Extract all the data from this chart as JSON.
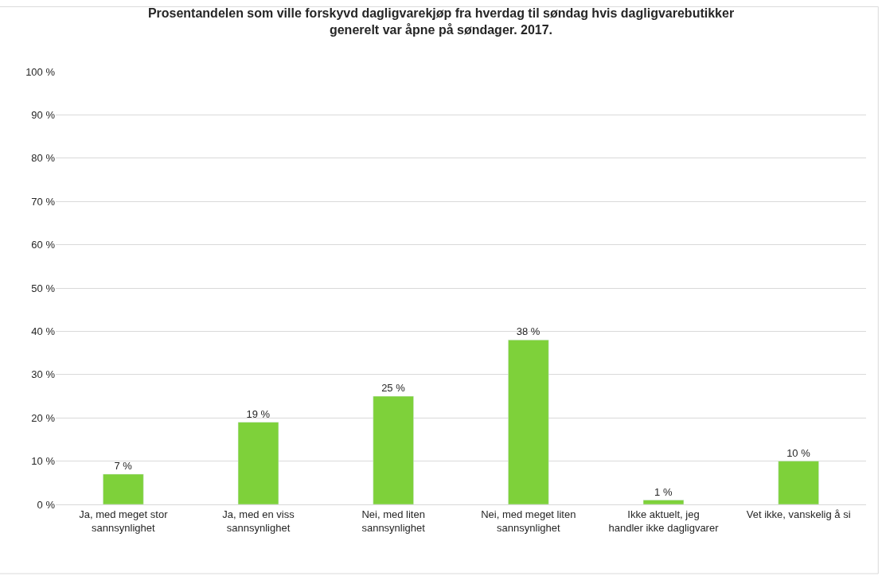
{
  "chart_data": {
    "type": "bar",
    "title": "Prosentandelen som ville forskyvd dagligvarekjøp fra hverdag til søndag hvis dagligvarebutikker generelt var åpne på søndager. 2017.",
    "categories": [
      "Ja, med meget stor sannsynlighet",
      "Ja, med en viss sannsynlighet",
      "Nei, med liten sannsynlighet",
      "Nei, med meget liten sannsynlighet",
      "Ikke aktuelt, jeg handler ikke dagligvarer",
      "Vet ikke, vanskelig å si"
    ],
    "values": [
      7,
      19,
      25,
      38,
      1,
      10
    ],
    "value_labels": [
      "7 %",
      "19 %",
      "25 %",
      "38 %",
      "1 %",
      "10 %"
    ],
    "color": "#7ed13a",
    "ylim": [
      0,
      100
    ],
    "yticks": [
      {
        "value": 0,
        "label": "0 %"
      },
      {
        "value": 10,
        "label": "10 %"
      },
      {
        "value": 20,
        "label": "20 %"
      },
      {
        "value": 30,
        "label": "30 %"
      },
      {
        "value": 40,
        "label": "40 %"
      },
      {
        "value": 50,
        "label": "50 %"
      },
      {
        "value": 60,
        "label": "60 %"
      },
      {
        "value": 70,
        "label": "70 %"
      },
      {
        "value": 80,
        "label": "80 %"
      },
      {
        "value": 90,
        "label": "90 %"
      },
      {
        "value": 100,
        "label": "100 %"
      }
    ],
    "grid": "y",
    "legend": false
  }
}
